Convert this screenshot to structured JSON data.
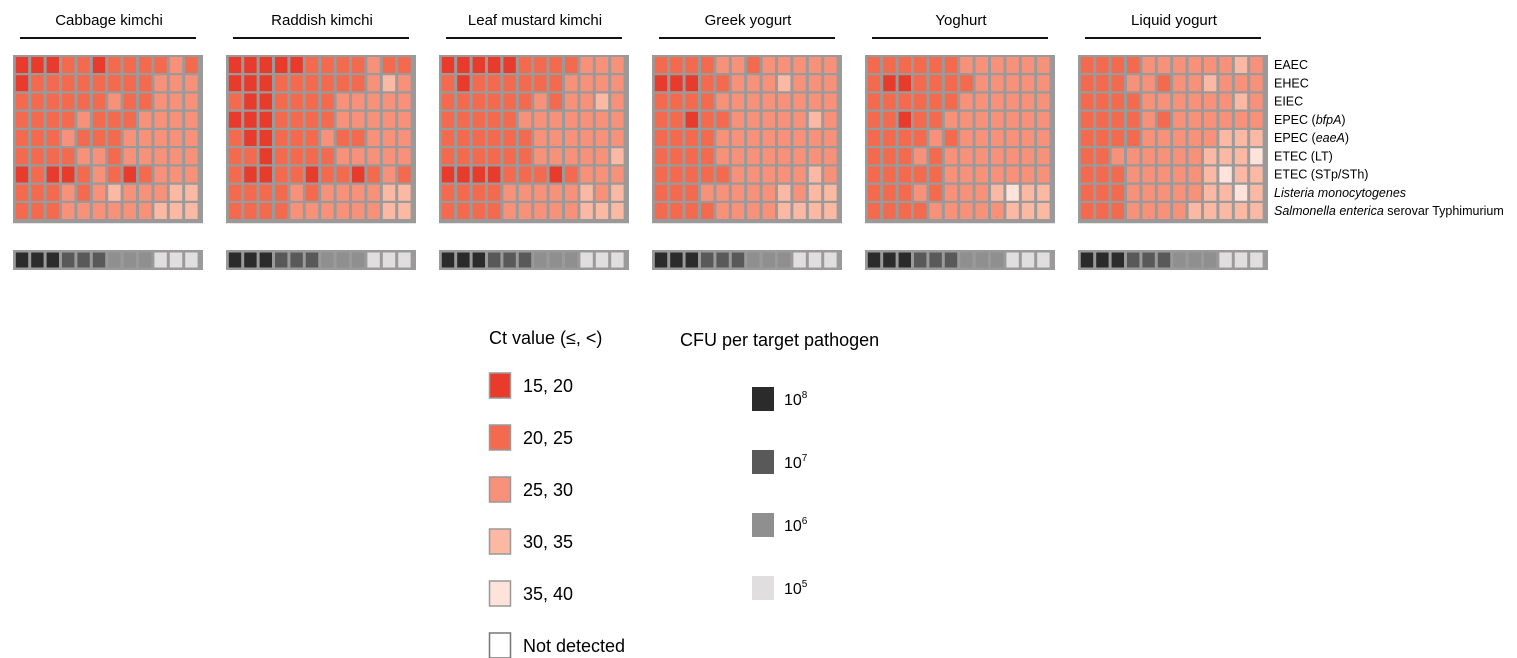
{
  "chart_data": {
    "type": "heatmap",
    "ct_scale": [
      "#E83B2C",
      "#F36A4E",
      "#F8917A",
      "#FBB9A4",
      "#FDE3DA",
      "#FFFFFF"
    ],
    "cfu_scale": [
      "#2B2B2B",
      "#595959",
      "#8F8F8F",
      "#E1DEDF"
    ],
    "columns_cfu_level": [
      0,
      0,
      0,
      1,
      1,
      1,
      2,
      2,
      2,
      3,
      3,
      3
    ],
    "rows": [
      {
        "label_parts": [
          {
            "t": "EAEC",
            "i": false
          }
        ]
      },
      {
        "label_parts": [
          {
            "t": "EHEC",
            "i": false
          }
        ]
      },
      {
        "label_parts": [
          {
            "t": "EIEC",
            "i": false
          }
        ]
      },
      {
        "label_parts": [
          {
            "t": "EPEC (",
            "i": false
          },
          {
            "t": "bfpA",
            "i": true
          },
          {
            "t": ")",
            "i": false
          }
        ]
      },
      {
        "label_parts": [
          {
            "t": "EPEC (",
            "i": false
          },
          {
            "t": "eaeA",
            "i": true
          },
          {
            "t": ")",
            "i": false
          }
        ]
      },
      {
        "label_parts": [
          {
            "t": "ETEC (LT)",
            "i": false
          }
        ]
      },
      {
        "label_parts": [
          {
            "t": "ETEC (STp/STh)",
            "i": false
          }
        ]
      },
      {
        "label_parts": [
          {
            "t": "Listeria monocytogenes",
            "i": true
          }
        ]
      },
      {
        "label_parts": [
          {
            "t": "Salmonella enterica",
            "i": true
          },
          {
            "t": " serovar Typhimurium",
            "i": false
          }
        ]
      }
    ],
    "panels": [
      {
        "title": "Cabbage kimchi",
        "ct_bins": [
          [
            0,
            0,
            0,
            1,
            1,
            0,
            1,
            1,
            1,
            1,
            2,
            1
          ],
          [
            0,
            1,
            1,
            1,
            1,
            1,
            1,
            1,
            1,
            2,
            2,
            2
          ],
          [
            1,
            1,
            1,
            1,
            1,
            1,
            2,
            1,
            1,
            2,
            2,
            2
          ],
          [
            1,
            1,
            1,
            1,
            2,
            1,
            1,
            1,
            2,
            2,
            2,
            2
          ],
          [
            1,
            1,
            1,
            2,
            1,
            1,
            1,
            2,
            2,
            2,
            2,
            2
          ],
          [
            1,
            1,
            1,
            1,
            2,
            2,
            1,
            2,
            2,
            2,
            2,
            2
          ],
          [
            0,
            1,
            0,
            0,
            1,
            2,
            1,
            0,
            1,
            2,
            2,
            2
          ],
          [
            1,
            1,
            1,
            2,
            1,
            2,
            3,
            2,
            2,
            2,
            3,
            3
          ],
          [
            1,
            1,
            1,
            2,
            2,
            2,
            2,
            2,
            2,
            3,
            3,
            3
          ]
        ]
      },
      {
        "title": "Raddish kimchi",
        "ct_bins": [
          [
            0,
            0,
            0,
            0,
            0,
            1,
            1,
            1,
            1,
            2,
            1,
            1
          ],
          [
            0,
            0,
            0,
            1,
            1,
            1,
            1,
            1,
            1,
            2,
            3,
            2
          ],
          [
            1,
            0,
            0,
            1,
            1,
            1,
            1,
            2,
            2,
            2,
            2,
            2
          ],
          [
            0,
            0,
            0,
            1,
            1,
            1,
            1,
            2,
            2,
            2,
            2,
            2
          ],
          [
            1,
            0,
            0,
            1,
            1,
            1,
            2,
            1,
            1,
            2,
            2,
            2
          ],
          [
            1,
            1,
            0,
            1,
            1,
            1,
            1,
            2,
            2,
            2,
            2,
            2
          ],
          [
            1,
            0,
            0,
            1,
            1,
            0,
            1,
            1,
            0,
            1,
            2,
            1
          ],
          [
            1,
            1,
            1,
            1,
            2,
            1,
            2,
            2,
            2,
            2,
            3,
            3
          ],
          [
            1,
            1,
            1,
            1,
            2,
            2,
            2,
            2,
            2,
            2,
            3,
            3
          ]
        ]
      },
      {
        "title": "Leaf mustard kimchi",
        "ct_bins": [
          [
            0,
            0,
            0,
            0,
            0,
            1,
            1,
            1,
            1,
            2,
            2,
            2
          ],
          [
            1,
            0,
            1,
            1,
            1,
            1,
            1,
            1,
            2,
            2,
            2,
            2
          ],
          [
            1,
            1,
            1,
            1,
            1,
            1,
            2,
            1,
            2,
            2,
            3,
            2
          ],
          [
            1,
            1,
            1,
            1,
            1,
            2,
            2,
            2,
            2,
            2,
            2,
            2
          ],
          [
            1,
            1,
            1,
            1,
            1,
            1,
            2,
            2,
            2,
            2,
            2,
            2
          ],
          [
            1,
            1,
            1,
            1,
            1,
            1,
            2,
            2,
            2,
            2,
            2,
            3
          ],
          [
            0,
            0,
            0,
            0,
            1,
            1,
            1,
            0,
            1,
            2,
            2,
            2
          ],
          [
            1,
            1,
            1,
            1,
            2,
            2,
            2,
            2,
            2,
            3,
            2,
            3
          ],
          [
            1,
            1,
            1,
            1,
            2,
            2,
            2,
            2,
            2,
            3,
            3,
            3
          ]
        ]
      },
      {
        "title": "Greek yogurt",
        "ct_bins": [
          [
            1,
            1,
            1,
            1,
            2,
            2,
            1,
            2,
            2,
            2,
            2,
            2
          ],
          [
            0,
            0,
            0,
            1,
            1,
            2,
            2,
            2,
            3,
            2,
            2,
            2
          ],
          [
            1,
            1,
            1,
            1,
            2,
            2,
            2,
            2,
            2,
            2,
            2,
            2
          ],
          [
            1,
            1,
            0,
            1,
            1,
            2,
            2,
            2,
            2,
            2,
            3,
            2
          ],
          [
            1,
            1,
            1,
            1,
            2,
            2,
            2,
            2,
            2,
            2,
            2,
            2
          ],
          [
            1,
            1,
            1,
            1,
            2,
            2,
            2,
            2,
            2,
            2,
            2,
            2
          ],
          [
            1,
            1,
            1,
            1,
            1,
            2,
            2,
            2,
            2,
            2,
            3,
            2
          ],
          [
            1,
            1,
            1,
            2,
            2,
            2,
            2,
            2,
            3,
            2,
            3,
            3
          ],
          [
            1,
            1,
            1,
            1,
            2,
            2,
            2,
            2,
            3,
            3,
            3,
            3
          ]
        ]
      },
      {
        "title": "Yoghurt",
        "ct_bins": [
          [
            1,
            1,
            1,
            1,
            1,
            1,
            2,
            2,
            2,
            2,
            2,
            2
          ],
          [
            1,
            0,
            0,
            1,
            1,
            1,
            1,
            2,
            2,
            2,
            2,
            2
          ],
          [
            1,
            1,
            1,
            1,
            1,
            1,
            2,
            2,
            2,
            2,
            2,
            2
          ],
          [
            1,
            1,
            0,
            1,
            1,
            2,
            2,
            2,
            2,
            2,
            2,
            2
          ],
          [
            1,
            1,
            1,
            1,
            2,
            1,
            2,
            2,
            2,
            2,
            2,
            2
          ],
          [
            1,
            1,
            1,
            2,
            1,
            2,
            2,
            2,
            2,
            2,
            2,
            2
          ],
          [
            1,
            1,
            1,
            1,
            1,
            2,
            2,
            2,
            2,
            2,
            2,
            2
          ],
          [
            1,
            1,
            1,
            2,
            1,
            2,
            2,
            2,
            3,
            4,
            3,
            3
          ],
          [
            1,
            1,
            1,
            1,
            2,
            2,
            2,
            2,
            2,
            3,
            3,
            3
          ]
        ]
      },
      {
        "title": "Liquid yogurt",
        "ct_bins": [
          [
            1,
            1,
            1,
            1,
            2,
            2,
            2,
            2,
            2,
            2,
            3,
            2
          ],
          [
            1,
            1,
            1,
            2,
            2,
            1,
            2,
            2,
            3,
            2,
            2,
            2
          ],
          [
            1,
            1,
            1,
            1,
            2,
            2,
            2,
            2,
            2,
            2,
            3,
            2
          ],
          [
            1,
            1,
            1,
            1,
            2,
            1,
            2,
            2,
            2,
            2,
            2,
            2
          ],
          [
            1,
            1,
            1,
            1,
            2,
            2,
            2,
            2,
            2,
            3,
            3,
            3
          ],
          [
            1,
            1,
            2,
            2,
            2,
            2,
            2,
            2,
            3,
            3,
            3,
            4
          ],
          [
            1,
            1,
            1,
            2,
            2,
            2,
            2,
            2,
            3,
            4,
            3,
            3
          ],
          [
            1,
            1,
            1,
            2,
            2,
            2,
            2,
            2,
            3,
            3,
            4,
            3
          ],
          [
            1,
            1,
            1,
            2,
            2,
            2,
            2,
            3,
            3,
            3,
            3,
            3
          ]
        ]
      }
    ],
    "legend_ct": {
      "title": "Ct value (≤, <)",
      "items": [
        "15, 20",
        "20, 25",
        "25, 30",
        "30, 35",
        "35, 40",
        "Not detected"
      ]
    },
    "legend_cfu": {
      "title": "CFU per target pathogen",
      "items": [
        {
          "base": "10",
          "exp": "8"
        },
        {
          "base": "10",
          "exp": "7"
        },
        {
          "base": "10",
          "exp": "6"
        },
        {
          "base": "10",
          "exp": "5"
        }
      ]
    }
  }
}
